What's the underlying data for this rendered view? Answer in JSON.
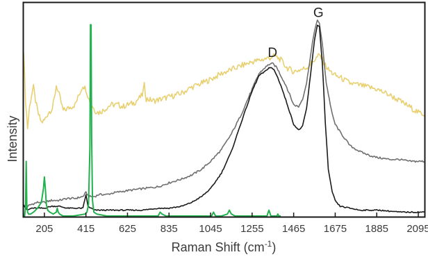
{
  "chart_data": {
    "type": "line",
    "title": "",
    "xlabel": "Raman Shift (cm",
    "xlabel_superscript": "-1",
    "xlabel_suffix": ")",
    "ylabel": "Intensity",
    "xlim": [
      100,
      2130
    ],
    "ylim": [
      0,
      1.0
    ],
    "x_ticks": [
      205,
      415,
      625,
      835,
      1045,
      1255,
      1465,
      1675,
      1885,
      2095
    ],
    "y_ticks_shown": false,
    "grid": false,
    "legend": "none",
    "annotations": [
      {
        "text": "D",
        "x": 1358,
        "y": 0.815
      },
      {
        "text": "G",
        "x": 1590,
        "y": 1.02
      }
    ],
    "series": [
      {
        "color": "#e8d070",
        "x": [
          100,
          110,
          120,
          130,
          140,
          150,
          160,
          175,
          190,
          205,
          225,
          245,
          255,
          265,
          280,
          300,
          320,
          340,
          360,
          380,
          400,
          415,
          430,
          445,
          460,
          480,
          500,
          540,
          580,
          600,
          625,
          660,
          700,
          710,
          720,
          760,
          800,
          835,
          870,
          900,
          950,
          1000,
          1045,
          1100,
          1150,
          1200,
          1255,
          1300,
          1340,
          1370,
          1400,
          1430,
          1465,
          1500,
          1530,
          1560,
          1590,
          1600,
          1620,
          1640,
          1675,
          1700,
          1750,
          1800,
          1885,
          1950,
          2000,
          2050,
          2095,
          2130
        ],
        "y": [
          0.85,
          0.59,
          0.45,
          0.56,
          0.62,
          0.66,
          0.59,
          0.52,
          0.48,
          0.49,
          0.53,
          0.55,
          0.6,
          0.67,
          0.62,
          0.54,
          0.55,
          0.56,
          0.57,
          0.62,
          0.67,
          0.65,
          0.6,
          0.57,
          0.54,
          0.53,
          0.54,
          0.57,
          0.57,
          0.56,
          0.57,
          0.58,
          0.62,
          0.67,
          0.6,
          0.59,
          0.6,
          0.61,
          0.62,
          0.63,
          0.66,
          0.68,
          0.7,
          0.73,
          0.75,
          0.77,
          0.79,
          0.8,
          0.81,
          0.82,
          0.8,
          0.76,
          0.74,
          0.75,
          0.76,
          0.79,
          0.82,
          0.82,
          0.78,
          0.75,
          0.72,
          0.71,
          0.68,
          0.67,
          0.65,
          0.62,
          0.59,
          0.56,
          0.53,
          0.52
        ]
      },
      {
        "color": "#6f6f6f",
        "x": [
          100,
          110,
          120,
          140,
          170,
          205,
          240,
          280,
          320,
          360,
          400,
          415,
          430,
          445,
          460,
          480,
          520,
          560,
          625,
          700,
          780,
          835,
          900,
          950,
          1000,
          1045,
          1100,
          1150,
          1200,
          1255,
          1290,
          1320,
          1345,
          1360,
          1380,
          1400,
          1430,
          1465,
          1490,
          1510,
          1530,
          1550,
          1570,
          1585,
          1595,
          1610,
          1630,
          1660,
          1675,
          1700,
          1750,
          1800,
          1850,
          1885,
          1950,
          2000,
          2050,
          2095,
          2130
        ],
        "y": [
          0.06,
          0.04,
          0.05,
          0.06,
          0.07,
          0.07,
          0.08,
          0.08,
          0.09,
          0.09,
          0.1,
          0.12,
          0.1,
          0.1,
          0.1,
          0.11,
          0.11,
          0.12,
          0.13,
          0.14,
          0.15,
          0.17,
          0.19,
          0.21,
          0.24,
          0.28,
          0.34,
          0.42,
          0.52,
          0.65,
          0.73,
          0.76,
          0.78,
          0.78,
          0.76,
          0.72,
          0.66,
          0.57,
          0.56,
          0.6,
          0.68,
          0.82,
          0.95,
          1.0,
          0.99,
          0.88,
          0.68,
          0.52,
          0.47,
          0.43,
          0.36,
          0.33,
          0.31,
          0.3,
          0.29,
          0.29,
          0.28,
          0.28,
          0.28
        ]
      },
      {
        "color": "#1a1a1a",
        "x": [
          100,
          110,
          120,
          140,
          170,
          205,
          240,
          280,
          320,
          360,
          400,
          415,
          425,
          440,
          460,
          480,
          520,
          560,
          625,
          700,
          780,
          835,
          900,
          950,
          1000,
          1045,
          1100,
          1150,
          1200,
          1255,
          1290,
          1320,
          1340,
          1350,
          1365,
          1380,
          1400,
          1430,
          1465,
          1490,
          1510,
          1530,
          1550,
          1570,
          1585,
          1595,
          1610,
          1625,
          1640,
          1660,
          1680,
          1700,
          1750,
          1800,
          1900,
          2000,
          2130
        ],
        "y": [
          0.06,
          0.04,
          0.03,
          0.04,
          0.04,
          0.04,
          0.05,
          0.05,
          0.04,
          0.04,
          0.04,
          0.11,
          0.05,
          0.04,
          0.03,
          0.03,
          0.03,
          0.03,
          0.03,
          0.03,
          0.04,
          0.04,
          0.05,
          0.07,
          0.1,
          0.14,
          0.22,
          0.33,
          0.48,
          0.64,
          0.72,
          0.74,
          0.76,
          0.76,
          0.75,
          0.72,
          0.67,
          0.58,
          0.47,
          0.44,
          0.46,
          0.55,
          0.72,
          0.9,
          0.98,
          0.97,
          0.78,
          0.48,
          0.24,
          0.12,
          0.07,
          0.05,
          0.04,
          0.03,
          0.03,
          0.02,
          0.02
        ]
      },
      {
        "color": "#22b14c",
        "x": [
          100,
          105,
          110,
          113,
          116,
          120,
          125,
          135,
          150,
          170,
          190,
          200,
          205,
          210,
          215,
          222,
          232,
          250,
          265,
          270,
          275,
          282,
          300,
          350,
          410,
          420,
          428,
          435,
          438,
          441,
          444,
          448,
          455,
          470,
          520,
          600,
          700,
          780,
          790,
          800,
          820,
          900,
          1000,
          1050,
          1060,
          1070,
          1100,
          1130,
          1140,
          1150,
          1170,
          1250,
          1300,
          1330,
          1340,
          1350,
          1360,
          1380,
          1385,
          1390,
          1400
        ],
        "y": [
          0.0,
          0.0,
          0.05,
          0.28,
          0.05,
          0.02,
          0.01,
          0.01,
          0.02,
          0.04,
          0.07,
          0.14,
          0.2,
          0.14,
          0.06,
          0.03,
          0.02,
          0.01,
          0.02,
          0.04,
          0.02,
          0.01,
          0.0,
          0.0,
          0.01,
          0.02,
          0.06,
          0.35,
          0.98,
          0.98,
          0.4,
          0.08,
          0.02,
          0.01,
          0.0,
          0.0,
          0.0,
          0.0,
          0.02,
          0.01,
          0.0,
          0.0,
          0.0,
          0.0,
          0.02,
          0.0,
          0.0,
          0.01,
          0.03,
          0.01,
          0.0,
          0.0,
          0.0,
          0.0,
          0.03,
          0.0,
          0.0,
          0.0,
          0.01,
          0.0,
          0.0
        ]
      }
    ]
  }
}
